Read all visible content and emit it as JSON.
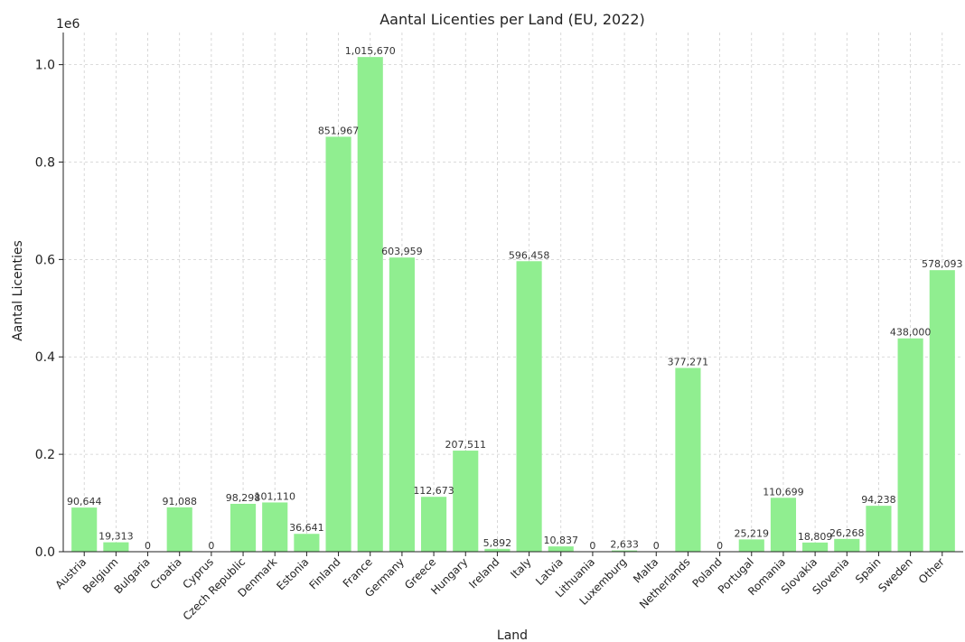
{
  "chart_data": {
    "type": "bar",
    "title": "Aantal Licenties per Land (EU, 2022)",
    "xlabel": "Land",
    "ylabel": "Aantal Licenties",
    "y_offset_text": "1e6",
    "ylim": [
      0,
      1066000
    ],
    "y_ticks": [
      0,
      200000,
      400000,
      600000,
      800000,
      1000000
    ],
    "y_tick_labels": [
      "0.0",
      "0.2",
      "0.4",
      "0.6",
      "0.8",
      "1.0"
    ],
    "grid": true,
    "bar_color": "#90ee90",
    "categories": [
      "Austria",
      "Belgium",
      "Bulgaria",
      "Croatia",
      "Cyprus",
      "Czech Republic",
      "Denmark",
      "Estonia",
      "Finland",
      "France",
      "Germany",
      "Greece",
      "Hungary",
      "Ireland",
      "Italy",
      "Latvia",
      "Lithuania",
      "Luxemburg",
      "Malta",
      "Netherlands",
      "Poland",
      "Portugal",
      "Romania",
      "Slovakia",
      "Slovenia",
      "Spain",
      "Sweden",
      "Other"
    ],
    "values": [
      90644,
      19313,
      0,
      91088,
      0,
      98298,
      101110,
      36641,
      851967,
      1015670,
      603959,
      112673,
      207511,
      5892,
      596458,
      10837,
      0,
      2633,
      0,
      377271,
      0,
      25219,
      110699,
      18809,
      26268,
      94238,
      438000,
      578093
    ],
    "value_labels": [
      "90,644",
      "19,313",
      "0",
      "91,088",
      "0",
      "98,298",
      "101,110",
      "36,641",
      "851,967",
      "1,015,670",
      "603,959",
      "112,673",
      "207,511",
      "5,892",
      "596,458",
      "10,837",
      "0",
      "2,633",
      "0",
      "377,271",
      "0",
      "25,219",
      "110,699",
      "18,809",
      "26,268",
      "94,238",
      "438,000",
      "578,093"
    ]
  }
}
